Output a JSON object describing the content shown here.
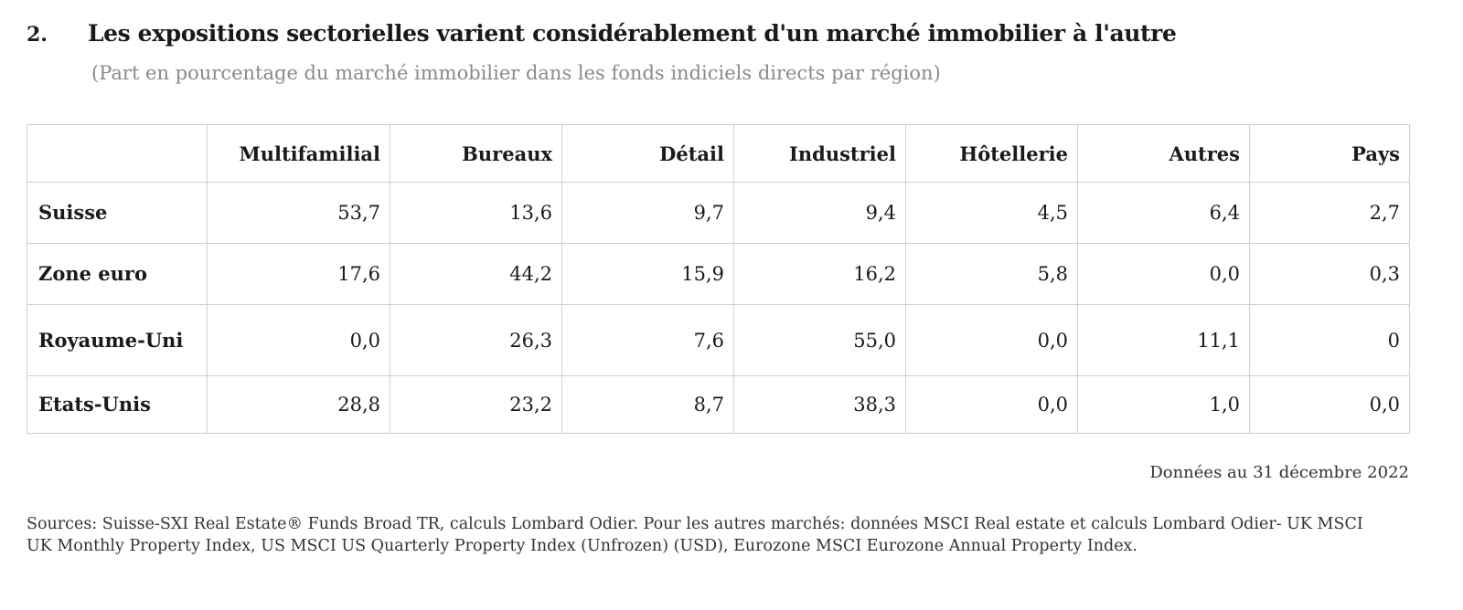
{
  "figure": {
    "number": "2.",
    "title": "Les expositions sectorielles varient considérablement d'un marché immobilier à l'autre",
    "subtitle": "(Part en pourcentage du marché immobilier dans les fonds indiciels directs par région)",
    "date_note": "Données au 31 décembre 2022",
    "sources": "Sources: Suisse-SXI Real Estate® Funds Broad TR, calculs Lombard Odier. Pour les autres marchés: données MSCI Real estate et calculs Lombard Odier- UK MSCI UK Monthly Property Index, US MSCI US Quarterly Property Index (Unfrozen) (USD), Eurozone MSCI Eurozone Annual Property Index."
  },
  "chart_data": {
    "type": "table",
    "columns": [
      "Multifamilial",
      "Bureaux",
      "Détail",
      "Industriel",
      "Hôtellerie",
      "Autres",
      "Pays"
    ],
    "rows": [
      {
        "label": "Suisse",
        "values": [
          "53,7",
          "13,6",
          "9,7",
          "9,4",
          "4,5",
          "6,4",
          "2,7"
        ]
      },
      {
        "label": "Zone euro",
        "values": [
          "17,6",
          "44,2",
          "15,9",
          "16,2",
          "5,8",
          "0,0",
          "0,3"
        ]
      },
      {
        "label": "Royaume-Uni",
        "values": [
          "0,0",
          "26,3",
          "7,6",
          "55,0",
          "0,0",
          "11,1",
          "0"
        ]
      },
      {
        "label": "Etats-Unis",
        "values": [
          "28,8",
          "23,2",
          "8,7",
          "38,3",
          "0,0",
          "1,0",
          "0,0"
        ]
      }
    ]
  }
}
